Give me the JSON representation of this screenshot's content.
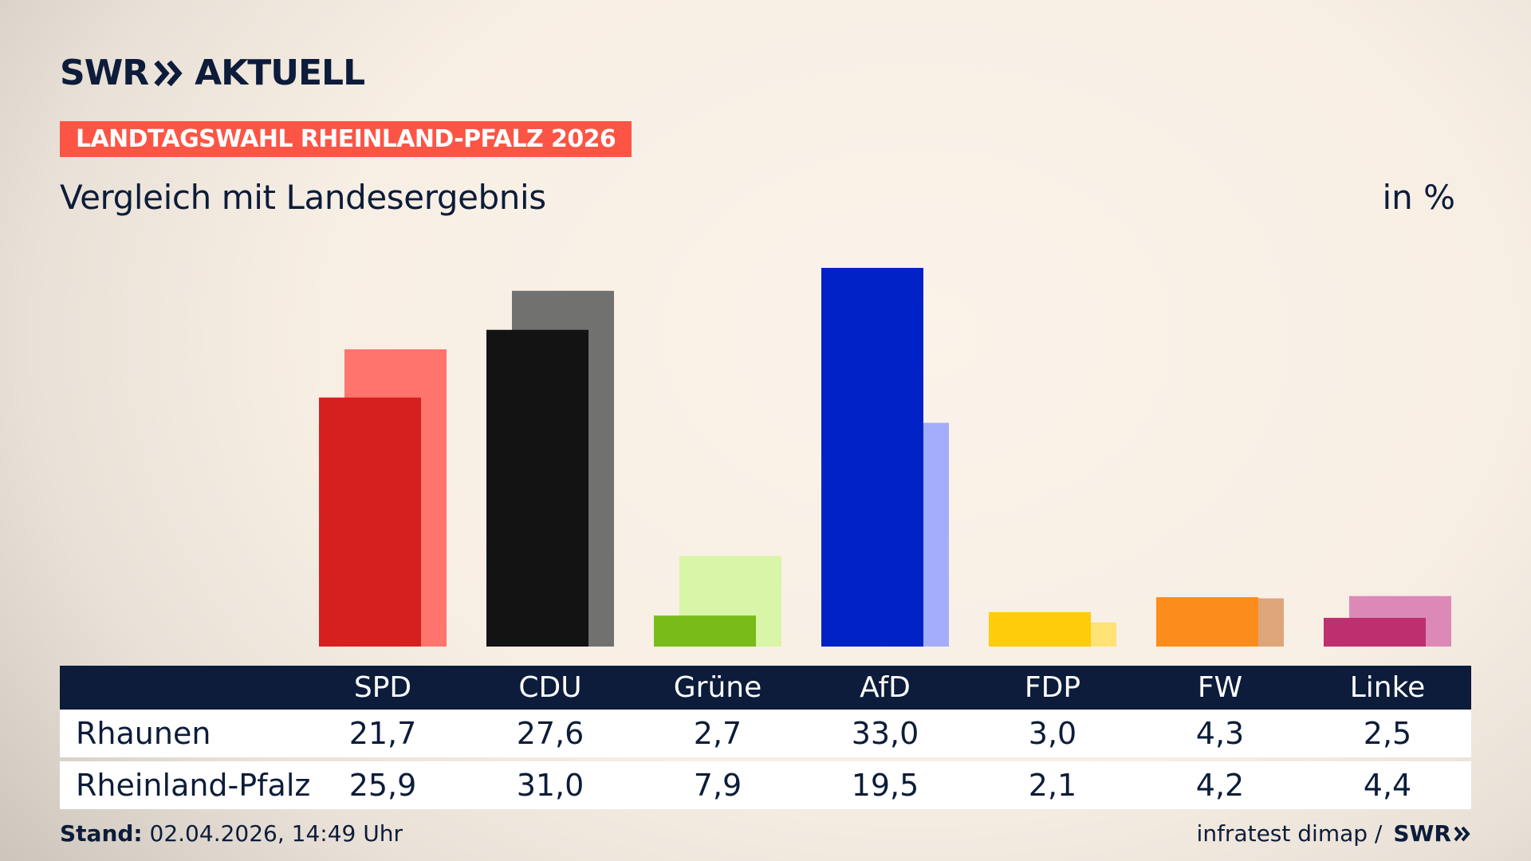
{
  "brand": {
    "swr": "SWR",
    "aktuell": "AKTUELL"
  },
  "badge": "LANDTAGSWAHL RHEINLAND-PFALZ 2026",
  "subtitle": "Vergleich mit Landesergebnis",
  "unit": "in %",
  "colors": {
    "SPD": [
      "#d6201f",
      "#ff746c"
    ],
    "CDU": [
      "#131313",
      "#717170"
    ],
    "Grüne": [
      "#79bc1a",
      "#d9f5a8"
    ],
    "AfD": [
      "#0022c7",
      "#a3adfc"
    ],
    "FDP": [
      "#fdcc0a",
      "#fee276"
    ],
    "FW": [
      "#fc8c1c",
      "#dda67a"
    ],
    "Linke": [
      "#be2f70",
      "#dc89b7"
    ],
    "header_bg": "#0c1c3a",
    "badge_bg": "#fc5545"
  },
  "chart_data": {
    "type": "bar",
    "categories": [
      "SPD",
      "CDU",
      "Grüne",
      "AfD",
      "FDP",
      "FW",
      "Linke"
    ],
    "series": [
      {
        "name": "Rhaunen",
        "values": [
          21.7,
          27.6,
          2.7,
          33.0,
          3.0,
          4.3,
          2.5
        ]
      },
      {
        "name": "Rheinland-Pfalz",
        "values": [
          25.9,
          31.0,
          7.9,
          19.5,
          2.1,
          4.2,
          4.4
        ]
      }
    ],
    "ylim": [
      0,
      33.0
    ],
    "grid": false,
    "legend": "none"
  },
  "table": {
    "rows": [
      {
        "label": "Rhaunen",
        "values": [
          "21,7",
          "27,6",
          "2,7",
          "33,0",
          "3,0",
          "4,3",
          "2,5"
        ]
      },
      {
        "label": "Rheinland-Pfalz",
        "values": [
          "25,9",
          "31,0",
          "7,9",
          "19,5",
          "2,1",
          "4,2",
          "4,4"
        ]
      }
    ]
  },
  "footer": {
    "stand_label": "Stand:",
    "stand_value": "02.04.2026, 14:49 Uhr",
    "source": "infratest dimap /",
    "source_brand": "SWR"
  }
}
